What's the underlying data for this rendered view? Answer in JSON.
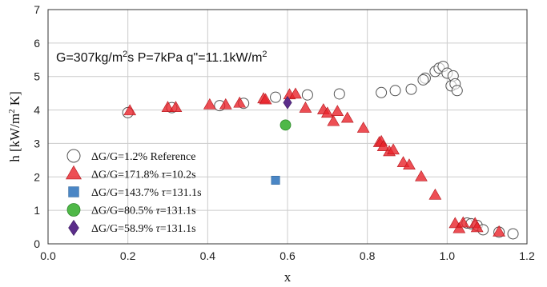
{
  "chart_data": {
    "type": "scatter",
    "x_label": "x",
    "y_label": {
      "pre": "h [kW/m",
      "sup": "2",
      "post": " K]"
    },
    "xlim": [
      0.0,
      1.2
    ],
    "ylim": [
      0,
      7
    ],
    "x_ticks": [
      "0.0",
      "0.2",
      "0.4",
      "0.6",
      "0.8",
      "1.0",
      "1.2"
    ],
    "y_ticks": [
      "0",
      "1",
      "2",
      "3",
      "4",
      "5",
      "6",
      "7"
    ],
    "grid": true,
    "annotation": {
      "parts": [
        "G=307kg/m",
        "2",
        "s P=7kPa q\"=11.1kW/m",
        "2"
      ]
    },
    "legend_position": "bottom-left",
    "series": [
      {
        "marker": "circle-open",
        "color": "#555555",
        "label": {
          "pre": "ΔG/G=1.2% Reference",
          "tau": "",
          "post": ""
        },
        "points": [
          [
            0.2,
            3.92
          ],
          [
            0.31,
            4.07
          ],
          [
            0.43,
            4.13
          ],
          [
            0.49,
            4.2
          ],
          [
            0.57,
            4.38
          ],
          [
            0.65,
            4.45
          ],
          [
            0.73,
            4.48
          ],
          [
            0.835,
            4.52
          ],
          [
            0.87,
            4.58
          ],
          [
            0.91,
            4.62
          ],
          [
            0.945,
            4.95
          ],
          [
            0.94,
            4.9
          ],
          [
            0.97,
            5.15
          ],
          [
            0.98,
            5.25
          ],
          [
            0.99,
            5.3
          ],
          [
            1.0,
            5.1
          ],
          [
            1.015,
            5.02
          ],
          [
            1.01,
            4.72
          ],
          [
            1.02,
            4.78
          ],
          [
            1.025,
            4.58
          ],
          [
            1.05,
            0.62
          ],
          [
            1.06,
            0.6
          ],
          [
            1.075,
            0.55
          ],
          [
            1.09,
            0.42
          ],
          [
            1.13,
            0.35
          ],
          [
            1.165,
            0.3
          ]
        ]
      },
      {
        "marker": "triangle",
        "color": "#e8232a",
        "label": {
          "pre": "ΔG/G=171.8% ",
          "tau": "τ",
          "post": "=10.2s"
        },
        "points": [
          [
            0.205,
            3.97
          ],
          [
            0.3,
            4.07
          ],
          [
            0.32,
            4.07
          ],
          [
            0.405,
            4.15
          ],
          [
            0.445,
            4.15
          ],
          [
            0.48,
            4.2
          ],
          [
            0.54,
            4.33
          ],
          [
            0.545,
            4.3
          ],
          [
            0.605,
            4.45
          ],
          [
            0.62,
            4.47
          ],
          [
            0.645,
            4.05
          ],
          [
            0.69,
            4.0
          ],
          [
            0.7,
            3.9
          ],
          [
            0.715,
            3.65
          ],
          [
            0.725,
            3.95
          ],
          [
            0.75,
            3.75
          ],
          [
            0.79,
            3.45
          ],
          [
            0.83,
            3.02
          ],
          [
            0.835,
            3.05
          ],
          [
            0.84,
            2.9
          ],
          [
            0.855,
            2.75
          ],
          [
            0.865,
            2.8
          ],
          [
            0.89,
            2.42
          ],
          [
            0.905,
            2.35
          ],
          [
            0.935,
            2.0
          ],
          [
            0.97,
            1.45
          ],
          [
            1.02,
            0.6
          ],
          [
            1.03,
            0.45
          ],
          [
            1.04,
            0.62
          ],
          [
            1.07,
            0.6
          ],
          [
            1.075,
            0.48
          ],
          [
            1.13,
            0.35
          ]
        ]
      },
      {
        "marker": "square",
        "color": "#4a86c5",
        "label": {
          "pre": "ΔG/G=143.7% ",
          "tau": "τ",
          "post": "=131.1s"
        },
        "points": [
          [
            0.57,
            1.9
          ]
        ]
      },
      {
        "marker": "circle",
        "color": "#4fb848",
        "label": {
          "pre": "ΔG/G=80.5% ",
          "tau": "τ",
          "post": "=131.1s"
        },
        "points": [
          [
            0.595,
            3.55
          ]
        ]
      },
      {
        "marker": "diamond",
        "color": "#5b2d8a",
        "label": {
          "pre": "ΔG/G=58.9% ",
          "tau": "τ",
          "post": "=131.1s"
        },
        "points": [
          [
            0.6,
            4.22
          ]
        ]
      }
    ]
  }
}
